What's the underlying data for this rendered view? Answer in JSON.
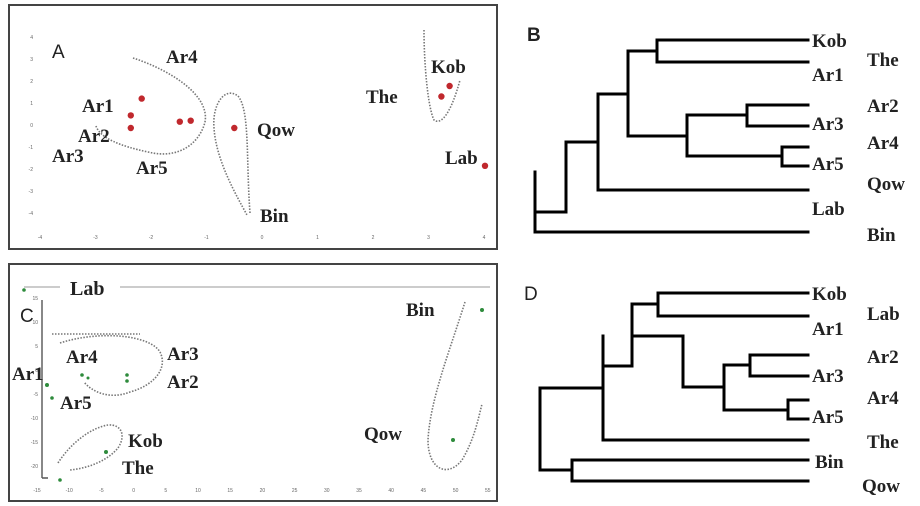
{
  "panels": {
    "A": {
      "letter": "A",
      "points": [
        {
          "label": "Ar1",
          "x": -2.3,
          "y": 1.4
        },
        {
          "label": "Ar2a",
          "x": -2.5,
          "y": 0.6
        },
        {
          "label": "Ar2b",
          "x": -2.5,
          "y": 0.0
        },
        {
          "label": "Ar5a",
          "x": -1.6,
          "y": 0.3
        },
        {
          "label": "Ar5b",
          "x": -1.4,
          "y": 0.35
        },
        {
          "label": "Qow",
          "x": -0.6,
          "y": 0.0
        },
        {
          "label": "The",
          "x": 3.2,
          "y": 1.5
        },
        {
          "label": "Kob",
          "x": 3.35,
          "y": 2.0
        },
        {
          "label": "Lab",
          "x": 4.0,
          "y": -1.8
        }
      ],
      "labels": {
        "ar1": "Ar1",
        "ar2": "Ar2",
        "ar3": "Ar3",
        "ar4": "Ar4",
        "ar5": "Ar5",
        "qow": "Qow",
        "bin": "Bin",
        "the": "The",
        "kob": "Kob",
        "lab": "Lab"
      },
      "x_ticks": [
        "-4",
        "-3",
        "-2",
        "-1",
        "0",
        "1",
        "2",
        "3",
        "4"
      ],
      "y_ticks": [
        "4",
        "3",
        "2",
        "1",
        "0",
        "-1",
        "-2",
        "-3",
        "-4"
      ]
    },
    "B": {
      "letter": "B",
      "leaves": [
        "Kob",
        "The",
        "Ar1",
        "Ar2",
        "Ar3",
        "Ar4",
        "Ar5",
        "Qow",
        "Lab",
        "Bin"
      ]
    },
    "C": {
      "letter": "C",
      "labels": {
        "lab": "Lab",
        "ar1": "Ar1",
        "ar4": "Ar4",
        "ar3": "Ar3",
        "ar2": "Ar2",
        "ar5": "Ar5",
        "kob": "Kob",
        "the": "The",
        "bin": "Bin",
        "qow": "Qow"
      },
      "x_ticks": [
        "-15",
        "-10",
        "-5",
        "0",
        "5",
        "10",
        "15",
        "20",
        "25",
        "30",
        "35",
        "40",
        "45",
        "50",
        "55"
      ],
      "y_ticks": [
        "15",
        "10",
        "5",
        "0",
        "-5",
        "-10",
        "-15",
        "-20"
      ]
    },
    "D": {
      "letter": "D",
      "leaves": [
        "Kob",
        "Lab",
        "Ar1",
        "Ar2",
        "Ar3",
        "Ar4",
        "Ar5",
        "The",
        "Bin",
        "Qow"
      ]
    }
  },
  "colors": {
    "point_A": "#c0282d",
    "point_C": "#2e8b3c",
    "line": "#000000",
    "ellipse": "#777777"
  }
}
